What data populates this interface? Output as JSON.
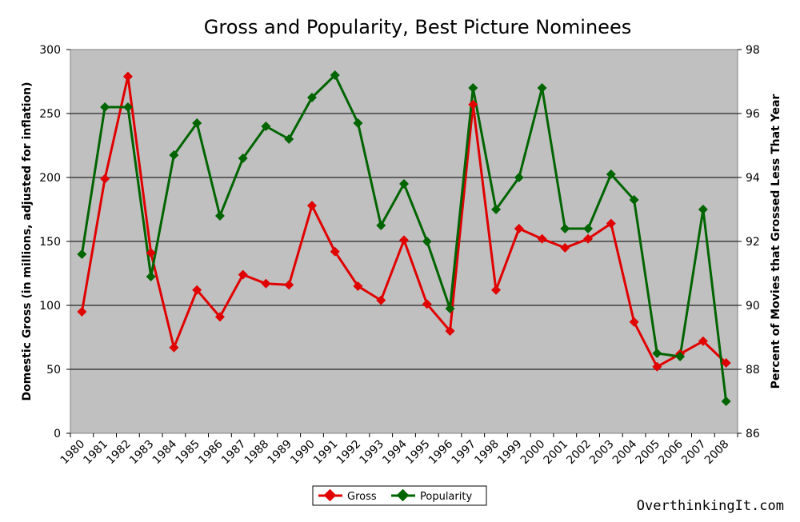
{
  "chart_data": {
    "type": "line",
    "title": "Gross and Popularity, Best Picture Nominees",
    "ylabel_left": "Domestic Gross (in millions, adjusted for inflation)",
    "ylabel_right": "Percent of Movies that Grossed Less That Year",
    "ylim_left": [
      0,
      300
    ],
    "ylim_right": [
      86,
      98
    ],
    "yticks_left": [
      "0",
      "50",
      "100",
      "150",
      "200",
      "250",
      "300"
    ],
    "yticks_right": [
      "86",
      "88",
      "90",
      "92",
      "94",
      "96",
      "98"
    ],
    "x": [
      "1980",
      "1981",
      "1982",
      "1983",
      "1984",
      "1985",
      "1986",
      "1987",
      "1988",
      "1989",
      "1990",
      "1991",
      "1992",
      "1993",
      "1994",
      "1995",
      "1996",
      "1997",
      "1998",
      "1999",
      "2000",
      "2001",
      "2002",
      "2003",
      "2004",
      "2005",
      "2006",
      "2007",
      "2008"
    ],
    "grid": true,
    "legend_position": "bottom-center",
    "series": [
      {
        "name": "Gross",
        "axis": "left",
        "color": "#e00000",
        "values": [
          95,
          199,
          279,
          141,
          67,
          112,
          91,
          124,
          117,
          116,
          178,
          142,
          115,
          104,
          151,
          101,
          80,
          257,
          112,
          160,
          152,
          145,
          152,
          164,
          87,
          52,
          62,
          72,
          55
        ]
      },
      {
        "name": "Popularity",
        "axis": "right",
        "color": "#006400",
        "values": [
          91.6,
          96.2,
          96.2,
          90.9,
          94.7,
          95.7,
          92.8,
          94.6,
          95.6,
          95.2,
          96.5,
          97.2,
          95.7,
          92.5,
          93.8,
          92.0,
          89.9,
          96.8,
          93.0,
          94.0,
          96.8,
          92.4,
          92.4,
          94.1,
          93.3,
          88.5,
          88.4,
          93.0,
          87.0
        ]
      }
    ]
  },
  "credit": "OverthinkingIt.com"
}
